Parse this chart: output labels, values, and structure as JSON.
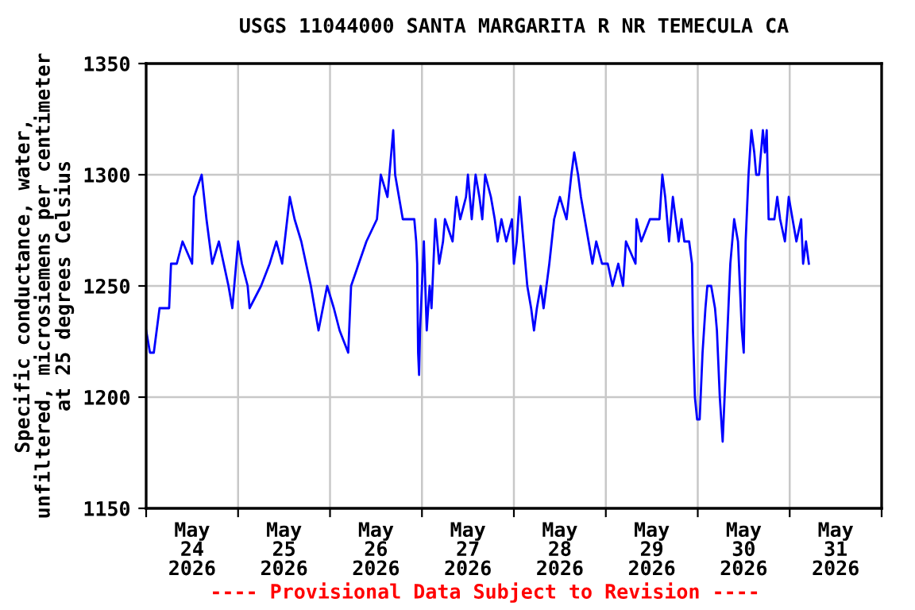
{
  "chart_data": {
    "type": "line",
    "title": "USGS 11044000 SANTA MARGARITA R NR TEMECULA CA",
    "ylabel": "Specific conductance, water,\nunfiltered, microsiemens per centimeter\nat 25 degrees Celsius",
    "annotations": [
      "---- Provisional Data Subject to Revision ----"
    ],
    "x": [
      "2026-05-24T00:00",
      "2026-05-24T01:00",
      "2026-05-24T02:00",
      "2026-05-24T03:30",
      "2026-05-24T06:00",
      "2026-05-24T06:30",
      "2026-05-24T08:00",
      "2026-05-24T09:30",
      "2026-05-24T12:00",
      "2026-05-24T12:30",
      "2026-05-24T14:30",
      "2026-05-24T15:45",
      "2026-05-24T17:15",
      "2026-05-24T19:00",
      "2026-05-24T21:30",
      "2026-05-24T22:30",
      "2026-05-25T00:00",
      "2026-05-25T01:00",
      "2026-05-25T02:30",
      "2026-05-25T03:00",
      "2026-05-25T06:00",
      "2026-05-25T08:15",
      "2026-05-25T10:00",
      "2026-05-25T11:30",
      "2026-05-25T13:30",
      "2026-05-25T14:45",
      "2026-05-25T16:30",
      "2026-05-25T19:00",
      "2026-05-25T21:00",
      "2026-05-25T23:15",
      "2026-05-26T01:00",
      "2026-05-26T02:30",
      "2026-05-26T04:45",
      "2026-05-26T05:30",
      "2026-05-26T07:30",
      "2026-05-26T09:30",
      "2026-05-26T12:15",
      "2026-05-26T13:15",
      "2026-05-26T15:00",
      "2026-05-26T16:30",
      "2026-05-26T17:00",
      "2026-05-26T18:00",
      "2026-05-26T19:00",
      "2026-05-26T22:00",
      "2026-05-26T22:30",
      "2026-05-26T22:45",
      "2026-05-26T23:00",
      "2026-05-26T23:15",
      "2026-05-26T23:30",
      "2026-05-27T00:00",
      "2026-05-27T00:30",
      "2026-05-27T01:15",
      "2026-05-27T02:00",
      "2026-05-27T02:30",
      "2026-05-27T03:00",
      "2026-05-27T03:30",
      "2026-05-27T04:30",
      "2026-05-27T05:30",
      "2026-05-27T06:00",
      "2026-05-27T08:00",
      "2026-05-27T09:00",
      "2026-05-27T10:00",
      "2026-05-27T11:30",
      "2026-05-27T12:00",
      "2026-05-27T13:00",
      "2026-05-27T14:00",
      "2026-05-27T15:00",
      "2026-05-27T15:45",
      "2026-05-27T16:30",
      "2026-05-27T18:00",
      "2026-05-27T19:00",
      "2026-05-27T19:45",
      "2026-05-27T20:45",
      "2026-05-27T22:00",
      "2026-05-27T23:30",
      "2026-05-28T00:00",
      "2026-05-28T00:45",
      "2026-05-28T01:30",
      "2026-05-28T02:30",
      "2026-05-28T03:30",
      "2026-05-28T04:30",
      "2026-05-28T05:15",
      "2026-05-28T06:00",
      "2026-05-28T07:00",
      "2026-05-28T07:45",
      "2026-05-28T09:15",
      "2026-05-28T10:30",
      "2026-05-28T12:00",
      "2026-05-28T13:45",
      "2026-05-28T15:00",
      "2026-05-28T15:45",
      "2026-05-28T16:45",
      "2026-05-28T17:30",
      "2026-05-28T18:30",
      "2026-05-28T19:30",
      "2026-05-28T20:30",
      "2026-05-28T21:30",
      "2026-05-28T23:00",
      "2026-05-29T00:30",
      "2026-05-29T01:45",
      "2026-05-29T03:15",
      "2026-05-29T04:30",
      "2026-05-29T05:15",
      "2026-05-29T07:45",
      "2026-05-29T08:00",
      "2026-05-29T09:15",
      "2026-05-29T11:30",
      "2026-05-29T14:00",
      "2026-05-29T14:45",
      "2026-05-29T15:30",
      "2026-05-29T16:30",
      "2026-05-29T17:30",
      "2026-05-29T19:00",
      "2026-05-29T19:45",
      "2026-05-29T20:30",
      "2026-05-29T21:45",
      "2026-05-29T22:30",
      "2026-05-29T22:45",
      "2026-05-29T23:15",
      "2026-05-29T23:50",
      "2026-05-30T00:30",
      "2026-05-30T01:15",
      "2026-05-30T02:00",
      "2026-05-30T02:30",
      "2026-05-30T03:30",
      "2026-05-30T04:30",
      "2026-05-30T05:00",
      "2026-05-30T05:45",
      "2026-05-30T06:30",
      "2026-05-30T07:15",
      "2026-05-30T08:00",
      "2026-05-30T08:30",
      "2026-05-30T09:30",
      "2026-05-30T10:30",
      "2026-05-30T11:30",
      "2026-05-30T12:00",
      "2026-05-30T12:30",
      "2026-05-30T13:15",
      "2026-05-30T14:00",
      "2026-05-30T14:45",
      "2026-05-30T15:15",
      "2026-05-30T16:00",
      "2026-05-30T17:00",
      "2026-05-30T17:30",
      "2026-05-30T18:00",
      "2026-05-30T18:30",
      "2026-05-30T20:00",
      "2026-05-30T20:45",
      "2026-05-30T21:30",
      "2026-05-30T22:45",
      "2026-05-30T23:45",
      "2026-05-31T00:45",
      "2026-05-31T01:45",
      "2026-05-31T03:00",
      "2026-05-31T03:30",
      "2026-05-31T04:15",
      "2026-05-31T05:00"
    ],
    "series": [
      {
        "color": "#0000ff",
        "values": [
          1230,
          1220,
          1220,
          1240,
          1240,
          1260,
          1260,
          1270,
          1260,
          1290,
          1300,
          1280,
          1260,
          1270,
          1250,
          1240,
          1270,
          1260,
          1250,
          1240,
          1250,
          1260,
          1270,
          1260,
          1290,
          1280,
          1270,
          1250,
          1230,
          1250,
          1240,
          1230,
          1220,
          1250,
          1260,
          1270,
          1280,
          1300,
          1290,
          1320,
          1300,
          1290,
          1280,
          1280,
          1270,
          1260,
          1220,
          1210,
          1230,
          1250,
          1270,
          1230,
          1250,
          1240,
          1260,
          1280,
          1260,
          1270,
          1280,
          1270,
          1290,
          1280,
          1290,
          1300,
          1280,
          1300,
          1290,
          1280,
          1300,
          1290,
          1280,
          1270,
          1280,
          1270,
          1280,
          1260,
          1270,
          1290,
          1270,
          1250,
          1240,
          1230,
          1240,
          1250,
          1240,
          1260,
          1280,
          1290,
          1280,
          1300,
          1310,
          1300,
          1290,
          1280,
          1270,
          1260,
          1270,
          1260,
          1260,
          1250,
          1260,
          1250,
          1270,
          1260,
          1280,
          1270,
          1280,
          1280,
          1300,
          1290,
          1270,
          1290,
          1270,
          1280,
          1270,
          1270,
          1260,
          1230,
          1200,
          1190,
          1190,
          1220,
          1240,
          1250,
          1250,
          1240,
          1230,
          1200,
          1180,
          1210,
          1240,
          1260,
          1280,
          1270,
          1230,
          1220,
          1270,
          1300,
          1320,
          1310,
          1300,
          1300,
          1320,
          1310,
          1320,
          1280,
          1280,
          1290,
          1280,
          1270,
          1290,
          1280,
          1270,
          1280,
          1260,
          1270,
          1260
        ]
      }
    ],
    "xlim": [
      "2026-05-24T00:00",
      "2026-06-01T00:00"
    ],
    "xticks": [
      {
        "value": "2026-05-24T00:00",
        "label": null
      },
      {
        "value": "2026-05-24T12:00",
        "label": "May\n24\n2026"
      },
      {
        "value": "2026-05-25T00:00",
        "label": null
      },
      {
        "value": "2026-05-25T12:00",
        "label": "May\n25\n2026"
      },
      {
        "value": "2026-05-26T00:00",
        "label": null
      },
      {
        "value": "2026-05-26T12:00",
        "label": "May\n26\n2026"
      },
      {
        "value": "2026-05-27T00:00",
        "label": null
      },
      {
        "value": "2026-05-27T12:00",
        "label": "May\n27\n2026"
      },
      {
        "value": "2026-05-28T00:00",
        "label": null
      },
      {
        "value": "2026-05-28T12:00",
        "label": "May\n28\n2026"
      },
      {
        "value": "2026-05-29T00:00",
        "label": null
      },
      {
        "value": "2026-05-29T12:00",
        "label": "May\n29\n2026"
      },
      {
        "value": "2026-05-30T00:00",
        "label": null
      },
      {
        "value": "2026-05-30T12:00",
        "label": "May\n30\n2026"
      },
      {
        "value": "2026-05-31T00:00",
        "label": null
      },
      {
        "value": "2026-05-31T12:00",
        "label": "May\n31\n2026"
      },
      {
        "value": "2026-06-01T00:00",
        "label": null
      }
    ],
    "ylim": [
      1150,
      1350
    ],
    "yticks": [
      1150,
      1200,
      1250,
      1300,
      1350
    ],
    "grid": true,
    "line_style": "solid"
  }
}
